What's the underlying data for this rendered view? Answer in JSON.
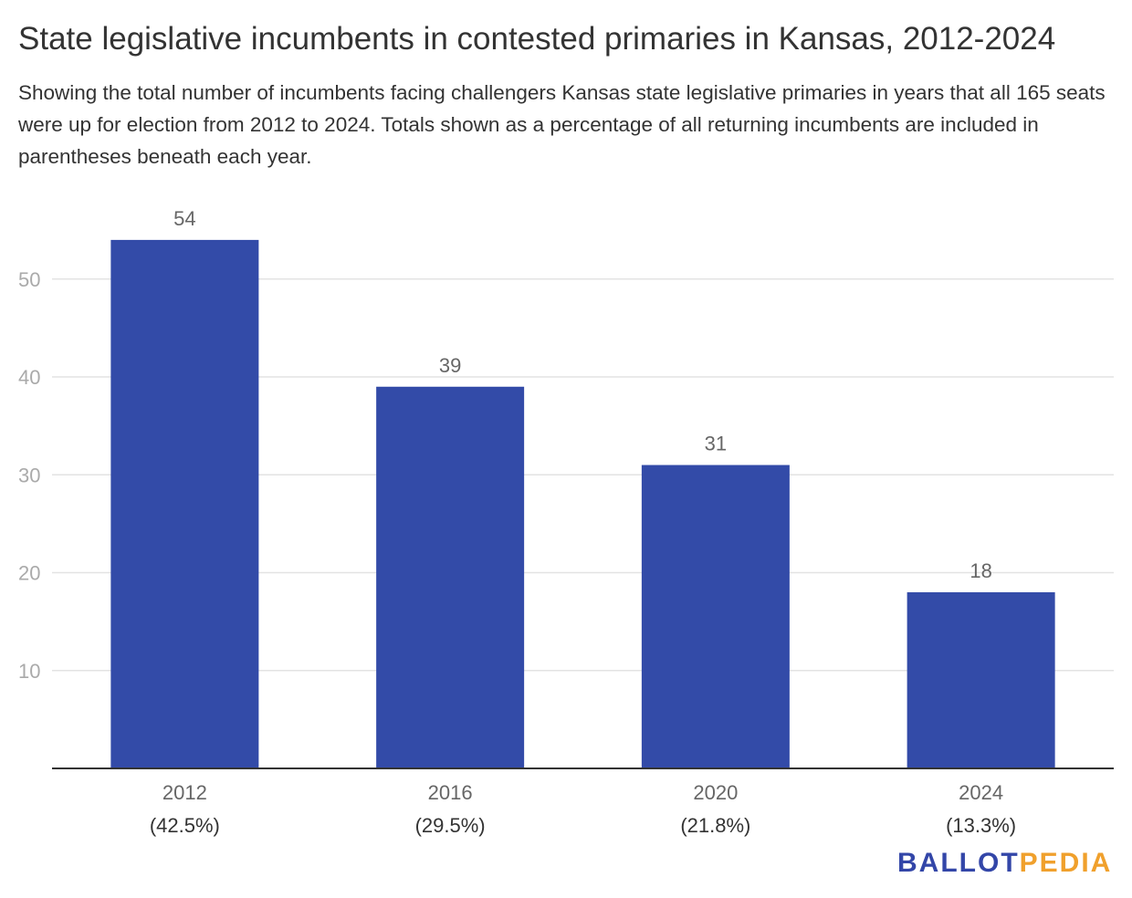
{
  "title": "State legislative incumbents in contested primaries in Kansas, 2012-2024",
  "subtitle": "Showing the total number of incumbents facing challengers Kansas state legislative primaries in years that all 165 seats were up for election from 2012 to 2024. Totals shown as a percentage of all returning incumbents are included in parentheses beneath each year.",
  "logo": {
    "part1": "BALLOT",
    "part2": "PEDIA"
  },
  "chart_data": {
    "type": "bar",
    "categories": [
      "2012",
      "2016",
      "2020",
      "2024"
    ],
    "category_sublabels": [
      "(42.5%)",
      "(29.5%)",
      "(21.8%)",
      "(13.3%)"
    ],
    "values": [
      54,
      39,
      31,
      18
    ],
    "data_labels": [
      "54",
      "39",
      "31",
      "18"
    ],
    "ylim": [
      0,
      58
    ],
    "yticks": [
      10,
      20,
      30,
      40,
      50
    ],
    "grid": true,
    "legend": "none",
    "bar_color": "#334ba8",
    "grid_color": "#e3e3e3",
    "axis_color": "#333333",
    "tick_label_color": "#aaaaaa"
  }
}
